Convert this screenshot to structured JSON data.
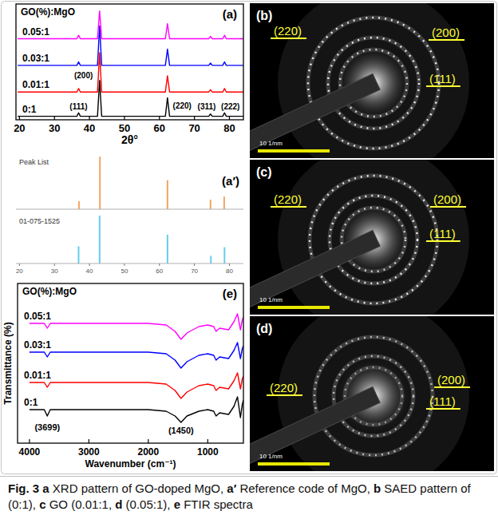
{
  "chart_data": [
    {
      "type": "line",
      "panel": "(a)",
      "title": "GO(%):MgO",
      "x_label": "2θ°",
      "x": [
        19.5,
        36.4,
        36.9,
        37.4,
        42.3,
        42.9,
        43.5,
        61.7,
        62.3,
        62.9,
        74.1,
        74.6,
        75.1,
        78.1,
        78.6,
        79.1,
        84
      ],
      "xlim": [
        19,
        84
      ],
      "xticks": [
        20,
        30,
        40,
        50,
        60,
        70,
        80
      ],
      "ylim": [
        0,
        100
      ],
      "tick_labels": "x",
      "legend": "left",
      "series": [
        {
          "name": "0:1",
          "color": "#000000",
          "values": [
            3,
            3,
            6,
            3,
            3,
            34,
            3,
            3,
            19,
            3,
            3,
            5,
            3,
            3,
            6,
            3,
            3
          ]
        },
        {
          "name": "0.01:1",
          "color": "#ff0000",
          "values": [
            24,
            24,
            27,
            24,
            24,
            58,
            24,
            24,
            38,
            24,
            24,
            26,
            24,
            24,
            27,
            24,
            24
          ]
        },
        {
          "name": "0.03:1",
          "color": "#0000ff",
          "values": [
            47,
            47,
            50,
            47,
            47,
            81,
            47,
            47,
            61,
            47,
            47,
            49,
            47,
            47,
            50,
            47,
            47
          ]
        },
        {
          "name": "0.05:1",
          "color": "#ff00ff",
          "values": [
            70,
            70,
            73,
            70,
            70,
            94,
            70,
            70,
            83,
            70,
            70,
            72,
            70,
            70,
            73,
            70,
            70
          ]
        }
      ],
      "annotations": [
        {
          "text": "(111)",
          "x": 36.9,
          "y": 9
        },
        {
          "text": "(200)",
          "x": 38.3,
          "y": 36
        },
        {
          "text": "(220)",
          "x": 66.5,
          "y": 10
        },
        {
          "text": "(311)",
          "x": 73.5,
          "y": 9
        },
        {
          "text": "(222)",
          "x": 80.3,
          "y": 9
        }
      ]
    },
    {
      "type": "stem",
      "panel": "(a′)",
      "xlim": [
        19,
        84
      ],
      "xticks": [
        20,
        30,
        40,
        50,
        60,
        70,
        80
      ],
      "ylim": [
        0,
        100
      ],
      "tick_labels": "x",
      "series": [
        {
          "name": "Peak List",
          "color": "#f4a460",
          "x": [
            37.0,
            43.0,
            62.3,
            74.6,
            78.5
          ],
          "values": [
            15,
            100,
            55,
            18,
            24
          ]
        },
        {
          "name": "01-075-1525",
          "color": "#66ccee",
          "x": [
            36.9,
            42.9,
            62.3,
            74.7,
            78.6
          ],
          "values": [
            36,
            100,
            60,
            16,
            34
          ]
        }
      ]
    },
    {
      "type": "line",
      "panel": "(e)",
      "title": "GO(%):MgO",
      "x_label": "Wavenumber (cm⁻¹)",
      "y_label": "Transmittance (%)",
      "x": [
        4000,
        3750,
        3700,
        3650,
        3000,
        2000,
        1700,
        1550,
        1450,
        1350,
        1150,
        1000,
        900,
        860,
        800,
        650,
        560,
        500,
        450,
        420,
        400
      ],
      "xlim": [
        4200,
        400
      ],
      "xticks": [
        4000,
        3000,
        2000,
        1000
      ],
      "ylim": [
        0,
        100
      ],
      "tick_labels": "x",
      "legend": "left",
      "series": [
        {
          "name": "0:1",
          "color": "#000000",
          "values": [
            21,
            21,
            17,
            21,
            21,
            21,
            20,
            17,
            13,
            17,
            20,
            21,
            20,
            17,
            19,
            18,
            23,
            29,
            16,
            24,
            27
          ]
        },
        {
          "name": "0.01:1",
          "color": "#ff0000",
          "values": [
            38,
            38,
            35,
            38,
            38,
            38,
            37,
            33,
            28,
            32,
            36,
            37,
            36,
            33,
            35,
            34,
            39,
            44,
            34,
            40,
            42
          ]
        },
        {
          "name": "0.03:1",
          "color": "#0000ff",
          "values": [
            57,
            57,
            54,
            57,
            57,
            57,
            56,
            52,
            47,
            51,
            55,
            56,
            55,
            52,
            54,
            53,
            58,
            63,
            53,
            59,
            61
          ]
        },
        {
          "name": "0.05:1",
          "color": "#ff00ff",
          "values": [
            75,
            75,
            72,
            75,
            75,
            75,
            74,
            70,
            65,
            69,
            73,
            74,
            73,
            70,
            72,
            71,
            76,
            81,
            71,
            77,
            79
          ]
        }
      ],
      "annotations": [
        {
          "text": "(3699)",
          "x": 3699,
          "y": 8
        },
        {
          "text": "(1450)",
          "x": 1450,
          "y": 6
        }
      ]
    }
  ],
  "images": [
    {
      "panel": "(b)",
      "labels": [
        "(220)",
        "(200)",
        "(111)"
      ],
      "scale_bar": "10 1/nm"
    },
    {
      "panel": "(c)",
      "labels": [
        "(220)",
        "(200)",
        "(111)"
      ],
      "scale_bar": "10 1/nm"
    },
    {
      "panel": "(d)",
      "labels": [
        "(220)",
        "(200)",
        "(111)"
      ],
      "scale_bar": "10 1/nm"
    }
  ],
  "caption": {
    "label": "Fig. 3",
    "items": [
      {
        "key": "a",
        "text": "XRD pattern of GO-doped MgO,"
      },
      {
        "key": "a′",
        "text": "Reference code of MgO,"
      },
      {
        "key": "b",
        "text": "SAED pattern of (0:1),"
      },
      {
        "key": "c",
        "text": "GO (0.01:1,"
      },
      {
        "key": "d",
        "text": "(0.05:1),"
      },
      {
        "key": "e",
        "text": "FTIR spectra"
      }
    ]
  }
}
